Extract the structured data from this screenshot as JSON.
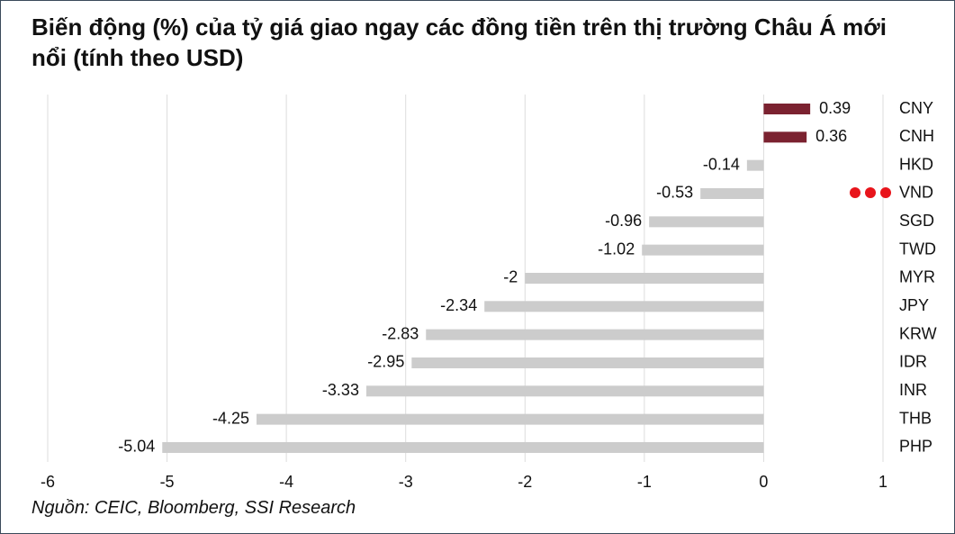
{
  "chart_data": {
    "type": "bar",
    "orientation": "horizontal",
    "title": "Biến động (%) của tỷ giá giao ngay các đồng tiền trên thị trường Châu Á mới nổi (tính theo USD)",
    "source": "Nguồn: CEIC, Bloomberg, SSI Research",
    "categories": [
      "CNY",
      "CNH",
      "HKD",
      "VND",
      "SGD",
      "TWD",
      "MYR",
      "JPY",
      "KRW",
      "IDR",
      "INR",
      "THB",
      "PHP"
    ],
    "values": [
      0.39,
      0.36,
      -0.14,
      -0.53,
      -0.96,
      -1.02,
      -2,
      -2.34,
      -2.83,
      -2.95,
      -3.33,
      -4.25,
      -5.04
    ],
    "positive_color": "#7b2230",
    "negative_color": "#cccccc",
    "xlim": [
      -6,
      1
    ],
    "xticks": [
      -6,
      -5,
      -4,
      -3,
      -2,
      -1,
      0,
      1
    ],
    "grid": true
  }
}
